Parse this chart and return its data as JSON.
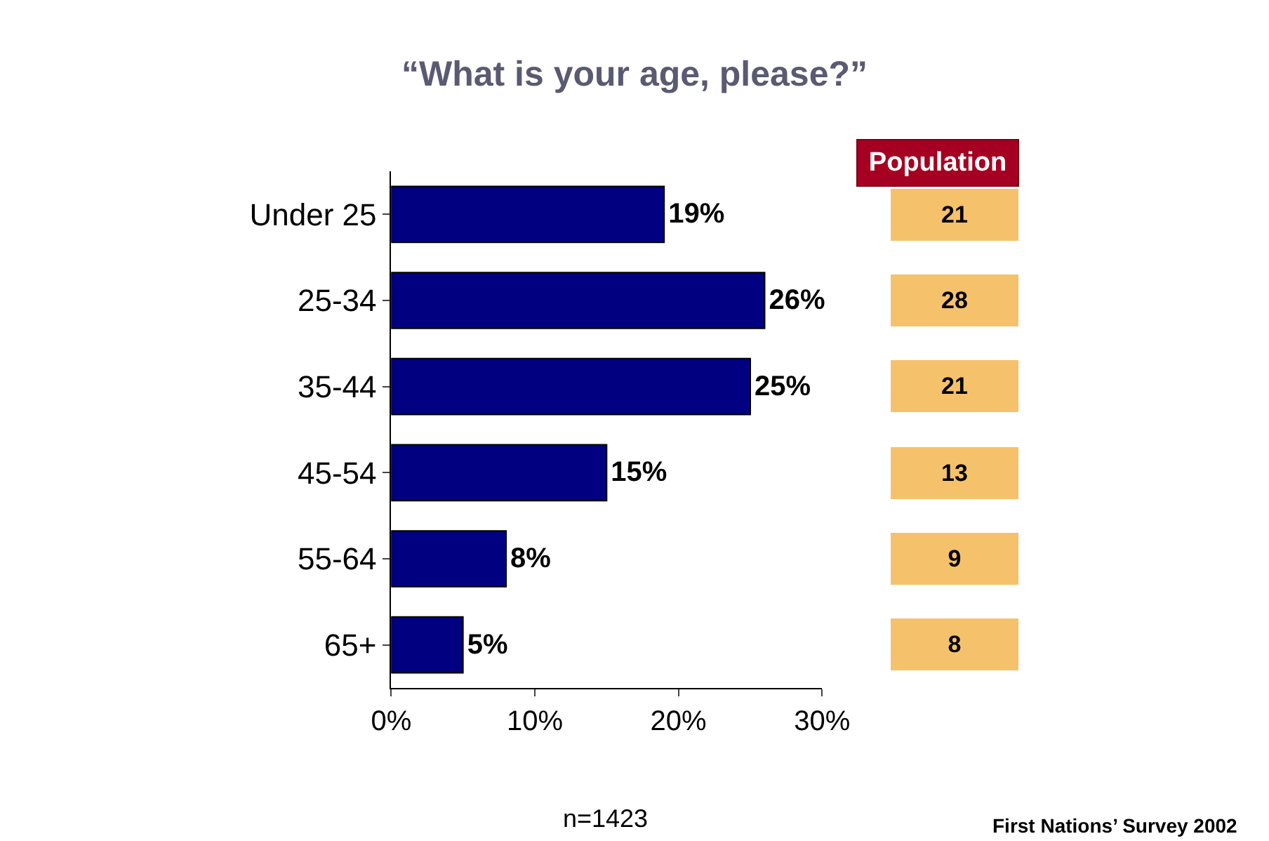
{
  "chart_data": [
    {
      "type": "bar",
      "orientation": "horizontal",
      "title": "“What is your age, please?”",
      "categories": [
        "Under 25",
        "25-34",
        "35-44",
        "45-54",
        "55-64",
        "65+"
      ],
      "values": [
        19,
        26,
        25,
        15,
        8,
        5
      ],
      "value_labels": [
        "19%",
        "26%",
        "25%",
        "15%",
        "8%",
        "5%"
      ],
      "color": "#000080",
      "xlim": [
        0,
        30
      ],
      "xticks": [
        {
          "value": 0,
          "label": "0%"
        },
        {
          "value": 10,
          "label": "10%"
        },
        {
          "value": 20,
          "label": "20%"
        },
        {
          "value": 30,
          "label": "30%"
        }
      ],
      "annotations": [
        "n=1423",
        "First Nations’ Survey 2002"
      ]
    },
    {
      "type": "other",
      "title": "Population",
      "annotations": [
        "21",
        "28",
        "21",
        "13",
        "9",
        "8"
      ],
      "color": "#f5c26b"
    }
  ]
}
